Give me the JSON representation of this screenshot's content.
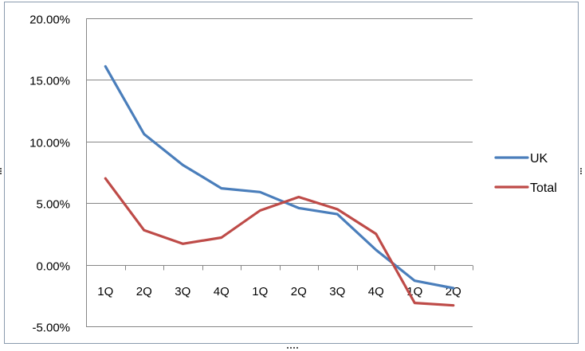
{
  "chart_data": {
    "type": "line",
    "categories": [
      "1Q",
      "2Q",
      "3Q",
      "4Q",
      "1Q",
      "2Q",
      "3Q",
      "4Q",
      "1Q",
      "2Q"
    ],
    "y_ticks": [
      "20.00%",
      "15.00%",
      "10.00%",
      "5.00%",
      "0.00%",
      "-5.00%"
    ],
    "y_tick_values": [
      20,
      15,
      10,
      5,
      0,
      -5
    ],
    "ylim": [
      -5,
      20
    ],
    "y_unit": "%",
    "grid": true,
    "legend_position": "right",
    "series": [
      {
        "name": "UK",
        "color": "#4a7ebb",
        "values": [
          16.1,
          10.6,
          8.1,
          6.2,
          5.9,
          4.6,
          4.1,
          1.2,
          -1.3,
          -1.9
        ]
      },
      {
        "name": "Total",
        "color": "#be4b48",
        "values": [
          7.0,
          2.8,
          1.7,
          2.2,
          4.4,
          5.5,
          4.5,
          2.5,
          -3.1,
          -3.3
        ]
      }
    ],
    "title": "",
    "xlabel": "",
    "ylabel": ""
  }
}
